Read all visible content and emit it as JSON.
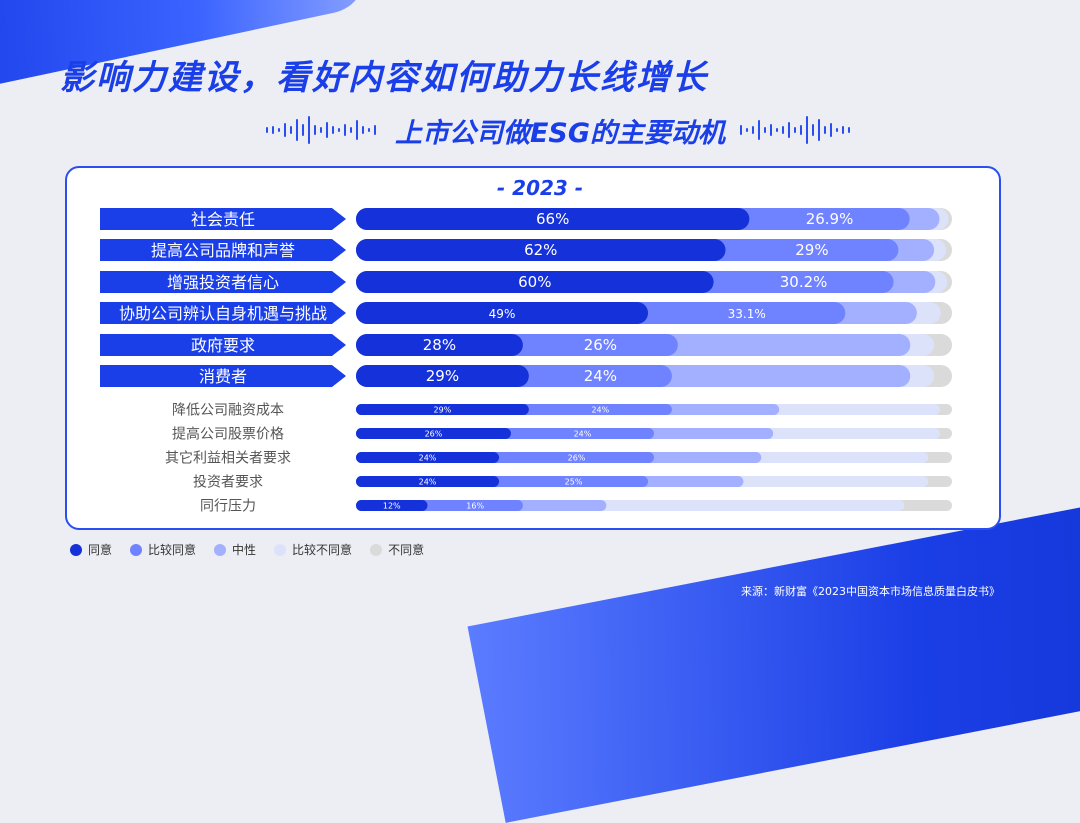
{
  "title": "影响力建设，看好内容如何助力长线增长",
  "subtitle": "上市公司做ESG的主要动机",
  "source": "来源：新财富《2023中国资本市场信息质量白皮书》",
  "colors": {
    "agree": "#1531d9",
    "somewhat_agree": "#6f82ff",
    "neutral": "#a3b0ff",
    "somewhat_disagree": "#dde2fb",
    "disagree": "#dadada",
    "accent": "#1a3ee8"
  },
  "chart_data": {
    "type": "bar",
    "orientation": "horizontal",
    "stacked": true,
    "title": "- 2023 -",
    "categories": [
      "社会责任",
      "提高公司品牌和声誉",
      "增强投资者信心",
      "协助公司辨认自身机遇与挑战",
      "政府要求",
      "消费者",
      "降低公司融资成本",
      "提高公司股票价格",
      "其它利益相关者要求",
      "投资者要求",
      "同行压力"
    ],
    "highlighted_count": 6,
    "legend_position": "bottom-left",
    "series": [
      {
        "name": "同意",
        "values": [
          66,
          62,
          60,
          49,
          28,
          29,
          29,
          26,
          24,
          24,
          12
        ],
        "labels": [
          "66%",
          "62%",
          "60%",
          "49%",
          "28%",
          "29%",
          "29%",
          "26%",
          "24%",
          "24%",
          "12%"
        ]
      },
      {
        "name": "比较同意",
        "values": [
          26.9,
          29,
          30.2,
          33.1,
          26,
          24,
          24,
          24,
          26,
          25,
          16
        ],
        "labels": [
          "26.9%",
          "29%",
          "30.2%",
          "33.1%",
          "26%",
          "24%",
          "24%",
          "24%",
          "26%",
          "25%",
          "16%"
        ]
      },
      {
        "name": "中性",
        "values": [
          5,
          6,
          7,
          12,
          39,
          40,
          18,
          20,
          18,
          16,
          14
        ]
      },
      {
        "name": "比较不同意",
        "values": [
          1.5,
          2,
          2,
          4,
          4,
          4,
          27,
          28,
          28,
          31,
          50
        ]
      },
      {
        "name": "不同意",
        "values": [
          0.6,
          1,
          0.8,
          1.9,
          3,
          3,
          2,
          2,
          4,
          4,
          8
        ]
      }
    ]
  }
}
